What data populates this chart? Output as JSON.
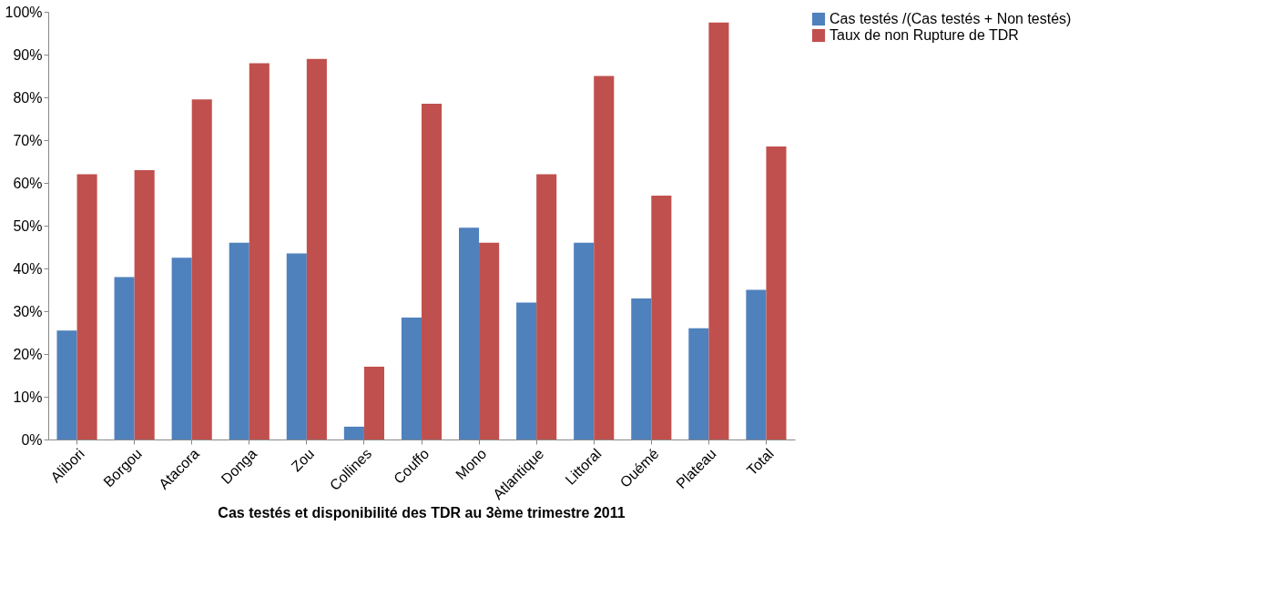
{
  "chart_data": {
    "type": "bar",
    "title": "Cas testés et disponibilité des TDR au 3ème trimestre 2011",
    "categories": [
      "Alibori",
      "Borgou",
      "Atacora",
      "Donga",
      "Zou",
      "Collines",
      "Couffo",
      "Mono",
      "Atlantique",
      "Littoral",
      "Ouémé",
      "Plateau",
      "Total"
    ],
    "series": [
      {
        "name": "Cas testés /(Cas testés + Non testés)",
        "color": "#4f81bd",
        "values": [
          25.5,
          38,
          42.5,
          46,
          43.5,
          3,
          28.5,
          49.5,
          32,
          46,
          33,
          26,
          35
        ]
      },
      {
        "name": "Taux de non Rupture de TDR",
        "color": "#c0504d",
        "values": [
          62,
          63,
          79.5,
          88,
          89,
          17,
          78.5,
          46,
          62,
          85,
          57,
          97.5,
          68.5
        ]
      }
    ],
    "ylim": [
      0,
      100
    ],
    "yticks": [
      {
        "value": 0,
        "label": "0%"
      },
      {
        "value": 10,
        "label": "10%"
      },
      {
        "value": 20,
        "label": "20%"
      },
      {
        "value": 30,
        "label": "30%"
      },
      {
        "value": 40,
        "label": "40%"
      },
      {
        "value": 50,
        "label": "50%"
      },
      {
        "value": 60,
        "label": "60%"
      },
      {
        "value": 70,
        "label": "70%"
      },
      {
        "value": 80,
        "label": "80%"
      },
      {
        "value": 90,
        "label": "90%"
      },
      {
        "value": 100,
        "label": "100%"
      }
    ],
    "grid": false,
    "legend": "right"
  }
}
